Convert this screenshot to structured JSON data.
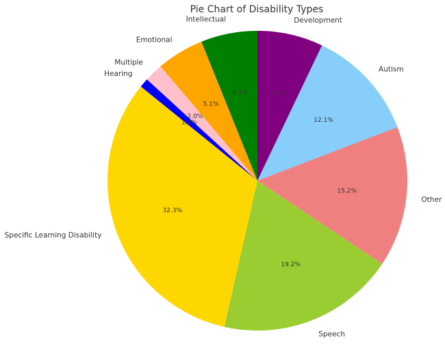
{
  "chart_data": {
    "type": "pie",
    "title": "Pie Chart of Disability Types",
    "start_angle_deg": 90,
    "direction": "clockwise",
    "slices": [
      {
        "label": "Development",
        "value": 7.1,
        "pct_text": "7.1%",
        "color": "#800080"
      },
      {
        "label": "Autism",
        "value": 12.1,
        "pct_text": "12.1%",
        "color": "#87CEFA"
      },
      {
        "label": "Other",
        "value": 15.2,
        "pct_text": "15.2%",
        "color": "#F08080"
      },
      {
        "label": "Speech",
        "value": 19.2,
        "pct_text": "19.2%",
        "color": "#9ACD32"
      },
      {
        "label": "Specific Learning Disability",
        "value": 32.3,
        "pct_text": "32.3%",
        "color": "#FFD700"
      },
      {
        "label": "Hearing",
        "value": 1.0,
        "pct_text": "1.0%",
        "color": "#0000FF"
      },
      {
        "label": "Multiple",
        "value": 2.0,
        "pct_text": "2.0%",
        "color": "#FFC0CB"
      },
      {
        "label": "Emotional",
        "value": 5.1,
        "pct_text": "5.1%",
        "color": "#FFA500"
      },
      {
        "label": "Intellectual",
        "value": 6.1,
        "pct_text": "6.1%",
        "color": "#008000"
      }
    ]
  }
}
